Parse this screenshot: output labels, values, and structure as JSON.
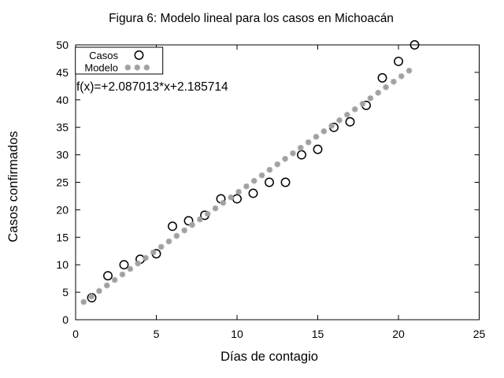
{
  "figure": {
    "background_color": "#ffffff",
    "axis_color": "#000000"
  },
  "chart_data": {
    "type": "scatter",
    "title": "Figura 6: Modelo lineal para los casos en Michoacán",
    "xlabel": "Días de contagio",
    "ylabel": "Casos confirmados",
    "xlim": [
      0,
      25
    ],
    "ylim": [
      0,
      50
    ],
    "xticks": [
      0,
      5,
      10,
      15,
      20,
      25
    ],
    "yticks": [
      0,
      5,
      10,
      15,
      20,
      25,
      30,
      35,
      40,
      45,
      50
    ],
    "grid": false,
    "legend_position": "top-left-inside",
    "annotation": "f(x)=+2.087013*x+2.185714",
    "series": [
      {
        "name": "Casos",
        "marker": "open-circle",
        "color": "#000000",
        "x": [
          1,
          2,
          3,
          4,
          5,
          6,
          7,
          8,
          9,
          10,
          11,
          12,
          13,
          14,
          15,
          16,
          17,
          18,
          19,
          20,
          21
        ],
        "y": [
          4,
          8,
          10,
          11,
          12,
          17,
          18,
          19,
          22,
          22,
          23,
          25,
          25,
          30,
          31,
          35,
          36,
          39,
          44,
          47,
          50
        ]
      },
      {
        "name": "Modelo",
        "marker": "asterisk",
        "color": "#a0a0a0",
        "model": {
          "slope": 2.087013,
          "intercept": 2.185714,
          "x_start": 0.5,
          "x_step": 0.48,
          "x_end": 20.66
        }
      }
    ]
  }
}
